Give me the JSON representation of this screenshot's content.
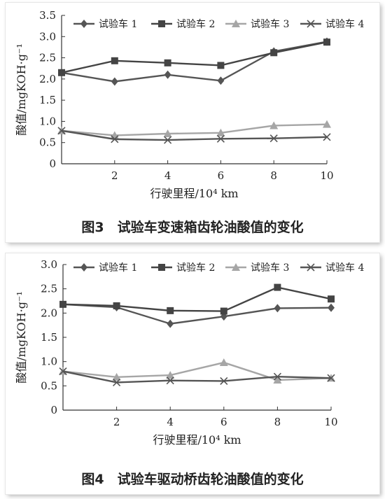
{
  "chart_data": [
    {
      "type": "line",
      "title": "图3　试验车变速箱齿轮油酸值的变化",
      "xlabel": "行驶里程/10⁴ km",
      "ylabel": "酸值/mgKOH·g⁻¹",
      "x": [
        0,
        2,
        4,
        6,
        8,
        10
      ],
      "xticks": [
        2,
        4,
        6,
        8,
        10
      ],
      "xlim": [
        0,
        10
      ],
      "ylim": [
        0,
        3.5
      ],
      "yticks": [
        0,
        0.5,
        1.0,
        1.5,
        2.0,
        2.5,
        3.0,
        3.5
      ],
      "ytick_labels": [
        "0",
        "0.5",
        "1.0",
        "1.5",
        "2.0",
        "2.5",
        "3.0",
        "3.5"
      ],
      "grid": false,
      "legend_position": "top",
      "series": [
        {
          "name": "试验车 1",
          "marker": "diamond",
          "color": "#555555",
          "values": [
            2.15,
            1.94,
            2.1,
            1.96,
            2.65,
            2.88
          ]
        },
        {
          "name": "试验车 2",
          "marker": "square",
          "color": "#444444",
          "values": [
            2.15,
            2.43,
            2.38,
            2.32,
            2.62,
            2.87
          ]
        },
        {
          "name": "试验车 3",
          "marker": "triangle",
          "color": "#a6a6a6",
          "values": [
            0.78,
            0.67,
            0.71,
            0.73,
            0.9,
            0.93
          ]
        },
        {
          "name": "试验车 4",
          "marker": "x",
          "color": "#555555",
          "values": [
            0.78,
            0.58,
            0.56,
            0.59,
            0.6,
            0.63
          ]
        }
      ]
    },
    {
      "type": "line",
      "title": "图4　试验车驱动桥齿轮油酸值的变化",
      "xlabel": "行驶里程/10⁴ km",
      "ylabel": "酸值/mgKOH·g⁻¹",
      "x": [
        0,
        2,
        4,
        6,
        8,
        10
      ],
      "xticks": [
        2,
        4,
        6,
        8,
        10
      ],
      "xlim": [
        0,
        10
      ],
      "ylim": [
        0,
        3.0
      ],
      "yticks": [
        0,
        0.5,
        1.0,
        1.5,
        2.0,
        2.5,
        3.0
      ],
      "ytick_labels": [
        "0",
        "0.5",
        "1.0",
        "1.5",
        "2.0",
        "2.5",
        "3.0"
      ],
      "grid": false,
      "legend_position": "top",
      "series": [
        {
          "name": "试验车 1",
          "marker": "diamond",
          "color": "#555555",
          "values": [
            2.18,
            2.12,
            1.78,
            1.93,
            2.1,
            2.11
          ]
        },
        {
          "name": "试验车 2",
          "marker": "square",
          "color": "#444444",
          "values": [
            2.18,
            2.15,
            2.05,
            2.04,
            2.53,
            2.29
          ]
        },
        {
          "name": "试验车 3",
          "marker": "triangle",
          "color": "#a6a6a6",
          "values": [
            0.8,
            0.68,
            0.72,
            0.98,
            0.62,
            0.66
          ]
        },
        {
          "name": "试验车 4",
          "marker": "x",
          "color": "#555555",
          "values": [
            0.8,
            0.57,
            0.61,
            0.6,
            0.69,
            0.66
          ]
        }
      ]
    }
  ]
}
